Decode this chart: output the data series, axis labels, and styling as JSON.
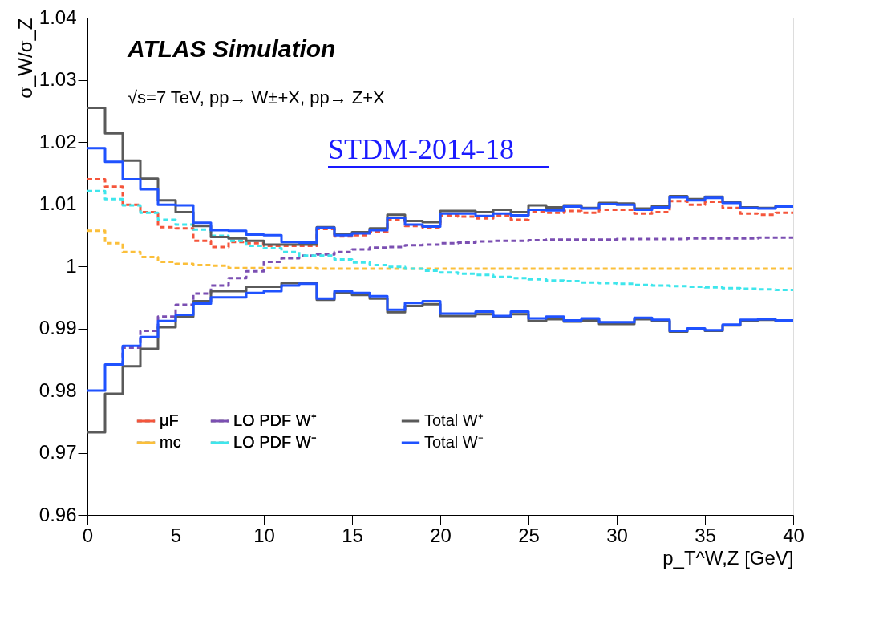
{
  "chart_data": {
    "type": "step",
    "xlabel": "p_T^W,Z [GeV]",
    "ylabel": "σ_W/σ_Z",
    "annotations": [
      "ATLAS Simulation",
      "√s=7 TeV, pp→ W±+X, pp→ Z+X",
      "STDM-2014-18"
    ],
    "x": [
      0,
      1,
      2,
      3,
      4,
      5,
      6,
      7,
      8,
      9,
      10,
      11,
      12,
      13,
      14,
      15,
      16,
      17,
      18,
      19,
      20,
      21,
      22,
      23,
      24,
      25,
      26,
      27,
      28,
      29,
      30,
      31,
      32,
      33,
      34,
      35,
      36,
      37,
      38,
      39,
      40
    ],
    "xlim": [
      0,
      40
    ],
    "xticks": [
      0,
      5,
      10,
      15,
      20,
      25,
      30,
      35,
      40
    ],
    "ylim": [
      0.96,
      1.04
    ],
    "yticks": [
      0.96,
      0.97,
      0.98,
      0.99,
      1,
      1.01,
      1.02,
      1.03,
      1.04
    ],
    "grid": false,
    "legend": "bottom left",
    "marker": "none",
    "series": [
      {
        "name": "μF",
        "color": "#f5553b",
        "line_style": "dashed",
        "values": [
          1.014,
          1.0128,
          1.0099,
          1.0087,
          1.0063,
          1.0061,
          1.0041,
          1.0031,
          1.0039,
          1.0037,
          1.0033,
          1.0033,
          1.0033,
          1.006,
          1.0048,
          1.005,
          1.0055,
          1.0075,
          1.0065,
          1.0062,
          1.0082,
          1.008,
          1.0077,
          1.0082,
          1.0075,
          1.0088,
          1.0086,
          1.0089,
          1.0086,
          1.0091,
          1.0091,
          1.0085,
          1.0087,
          1.0105,
          1.0099,
          1.0104,
          1.0094,
          1.0085,
          1.0083,
          1.0086,
          1.0086
        ]
      },
      {
        "name": "mc",
        "color": "#fbbf3a",
        "line_style": "dashed",
        "values": [
          1.0057,
          1.0037,
          1.0023,
          1.0015,
          1.0007,
          1.0004,
          1.0002,
          1.0001,
          0.9997,
          0.9997,
          0.9997,
          0.9997,
          0.9997,
          0.9996,
          0.9996,
          0.9996,
          0.9996,
          0.9996,
          0.9996,
          0.9996,
          0.9996,
          0.9996,
          0.9996,
          0.9996,
          0.9996,
          0.9996,
          0.9996,
          0.9996,
          0.9996,
          0.9996,
          0.9996,
          0.9996,
          0.9996,
          0.9996,
          0.9996,
          0.9996,
          0.9996,
          0.9996,
          0.9996,
          0.9996,
          0.9996
        ]
      },
      {
        "name": "LO PDF W⁺",
        "color": "#7b4fb2",
        "line_style": "dashed",
        "values": [
          null,
          0.9843,
          0.9869,
          0.9896,
          0.9919,
          0.9938,
          0.9956,
          0.9969,
          0.9981,
          0.9992,
          1.0007,
          1.0013,
          1.0017,
          1.0019,
          1.0023,
          1.0027,
          1.003,
          1.0031,
          1.0034,
          1.0035,
          1.0037,
          1.0038,
          1.004,
          1.0041,
          1.0041,
          1.0042,
          1.0043,
          1.0043,
          1.0043,
          1.0043,
          1.0044,
          1.0044,
          1.0044,
          1.0044,
          1.0045,
          1.0045,
          1.0045,
          1.0045,
          1.0046,
          1.0046,
          1.0046
        ]
      },
      {
        "name": "LO PDF W⁻",
        "color": "#3ee6ec",
        "line_style": "dashed",
        "values": [
          1.0121,
          1.0108,
          1.0098,
          1.0086,
          1.0075,
          1.0067,
          1.0059,
          1.0049,
          1.0041,
          1.0033,
          1.0029,
          1.0023,
          1.0017,
          1.0017,
          1.0011,
          1.0006,
          1.0002,
          0.9999,
          0.9996,
          0.9993,
          0.999,
          0.9988,
          0.9986,
          0.9983,
          0.9981,
          0.9979,
          0.9977,
          0.9976,
          0.9974,
          0.9973,
          0.9972,
          0.997,
          0.9969,
          0.9968,
          0.9967,
          0.9966,
          0.9965,
          0.9964,
          0.9963,
          0.9962,
          0.9962
        ]
      },
      {
        "name": "Total W⁺",
        "color": "#5a5a5a",
        "line_style": "solid",
        "values": [
          1.0255,
          1.0214,
          1.017,
          1.0141,
          1.0106,
          1.0087,
          1.0065,
          1.0047,
          1.0045,
          1.0041,
          1.0035,
          1.0035,
          1.0035,
          1.0063,
          1.0052,
          1.0055,
          1.0061,
          1.0083,
          1.0073,
          1.0071,
          1.0089,
          1.0089,
          1.0087,
          1.0091,
          1.0087,
          1.0098,
          1.0095,
          1.0098,
          1.0094,
          1.0102,
          1.0101,
          1.0093,
          1.0097,
          1.0113,
          1.0108,
          1.0112,
          1.0104,
          1.0095,
          1.0094,
          1.0097,
          1.0097
        ]
      },
      {
        "name": "Total W⁻",
        "color": "#1f52ff",
        "line_style": "solid",
        "values": [
          1.019,
          1.0168,
          1.014,
          1.0124,
          1.0099,
          1.0098,
          1.007,
          1.0058,
          1.0057,
          1.0051,
          1.005,
          1.0039,
          1.0038,
          1.0062,
          1.005,
          1.0053,
          1.0058,
          1.0078,
          1.0067,
          1.0064,
          1.0085,
          1.0085,
          1.0081,
          1.0085,
          1.0082,
          1.0091,
          1.009,
          1.0096,
          1.0093,
          1.01,
          1.0099,
          1.0091,
          1.0095,
          1.0111,
          1.0106,
          1.011,
          1.0102,
          1.0094,
          1.0093,
          1.0096,
          1.0096
        ]
      },
      {
        "color": "#5a5a5a",
        "line_style": "solid",
        "values": [
          0.9733,
          0.9795,
          0.9839,
          0.9867,
          0.9902,
          0.9919,
          0.9944,
          0.996,
          0.996,
          0.9967,
          0.9967,
          0.9973,
          0.9973,
          0.9946,
          0.9957,
          0.9954,
          0.9948,
          0.9926,
          0.9936,
          0.9939,
          0.992,
          0.992,
          0.9923,
          0.9918,
          0.9923,
          0.9912,
          0.9915,
          0.9911,
          0.9913,
          0.9907,
          0.9907,
          0.9915,
          0.9912,
          0.9895,
          0.9899,
          0.9896,
          0.9905,
          0.9913,
          0.9914,
          0.9912,
          0.9912
        ]
      },
      {
        "color": "#1f52ff",
        "line_style": "solid",
        "values": [
          0.98,
          0.9842,
          0.9872,
          0.9886,
          0.9912,
          0.9922,
          0.994,
          0.995,
          0.995,
          0.9957,
          0.996,
          0.9969,
          0.9972,
          0.9948,
          0.996,
          0.9957,
          0.9952,
          0.993,
          0.9941,
          0.9944,
          0.9924,
          0.9924,
          0.9927,
          0.992,
          0.9927,
          0.9916,
          0.9919,
          0.9913,
          0.9916,
          0.991,
          0.991,
          0.9917,
          0.9914,
          0.9896,
          0.99,
          0.9897,
          0.9906,
          0.9914,
          0.9915,
          0.9913,
          0.9913
        ]
      }
    ]
  }
}
